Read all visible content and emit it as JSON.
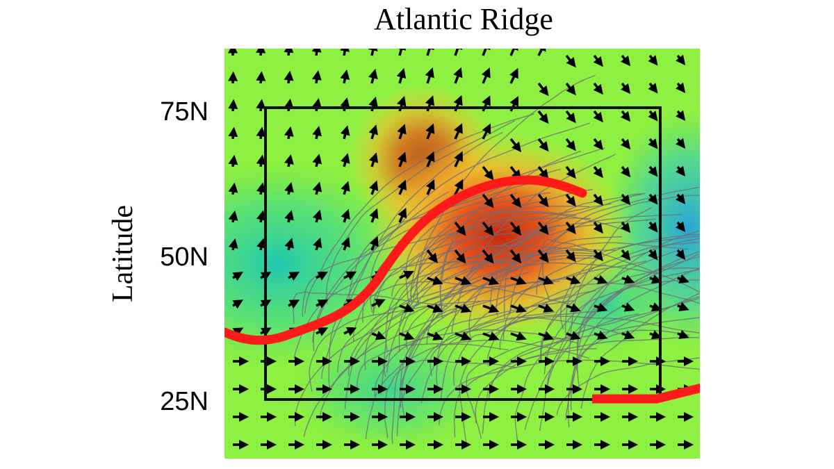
{
  "title": "Atlantic Ridge",
  "y_axis": {
    "label": "Latitude",
    "ticks": [
      "75N",
      "50N",
      "25N"
    ]
  }
}
